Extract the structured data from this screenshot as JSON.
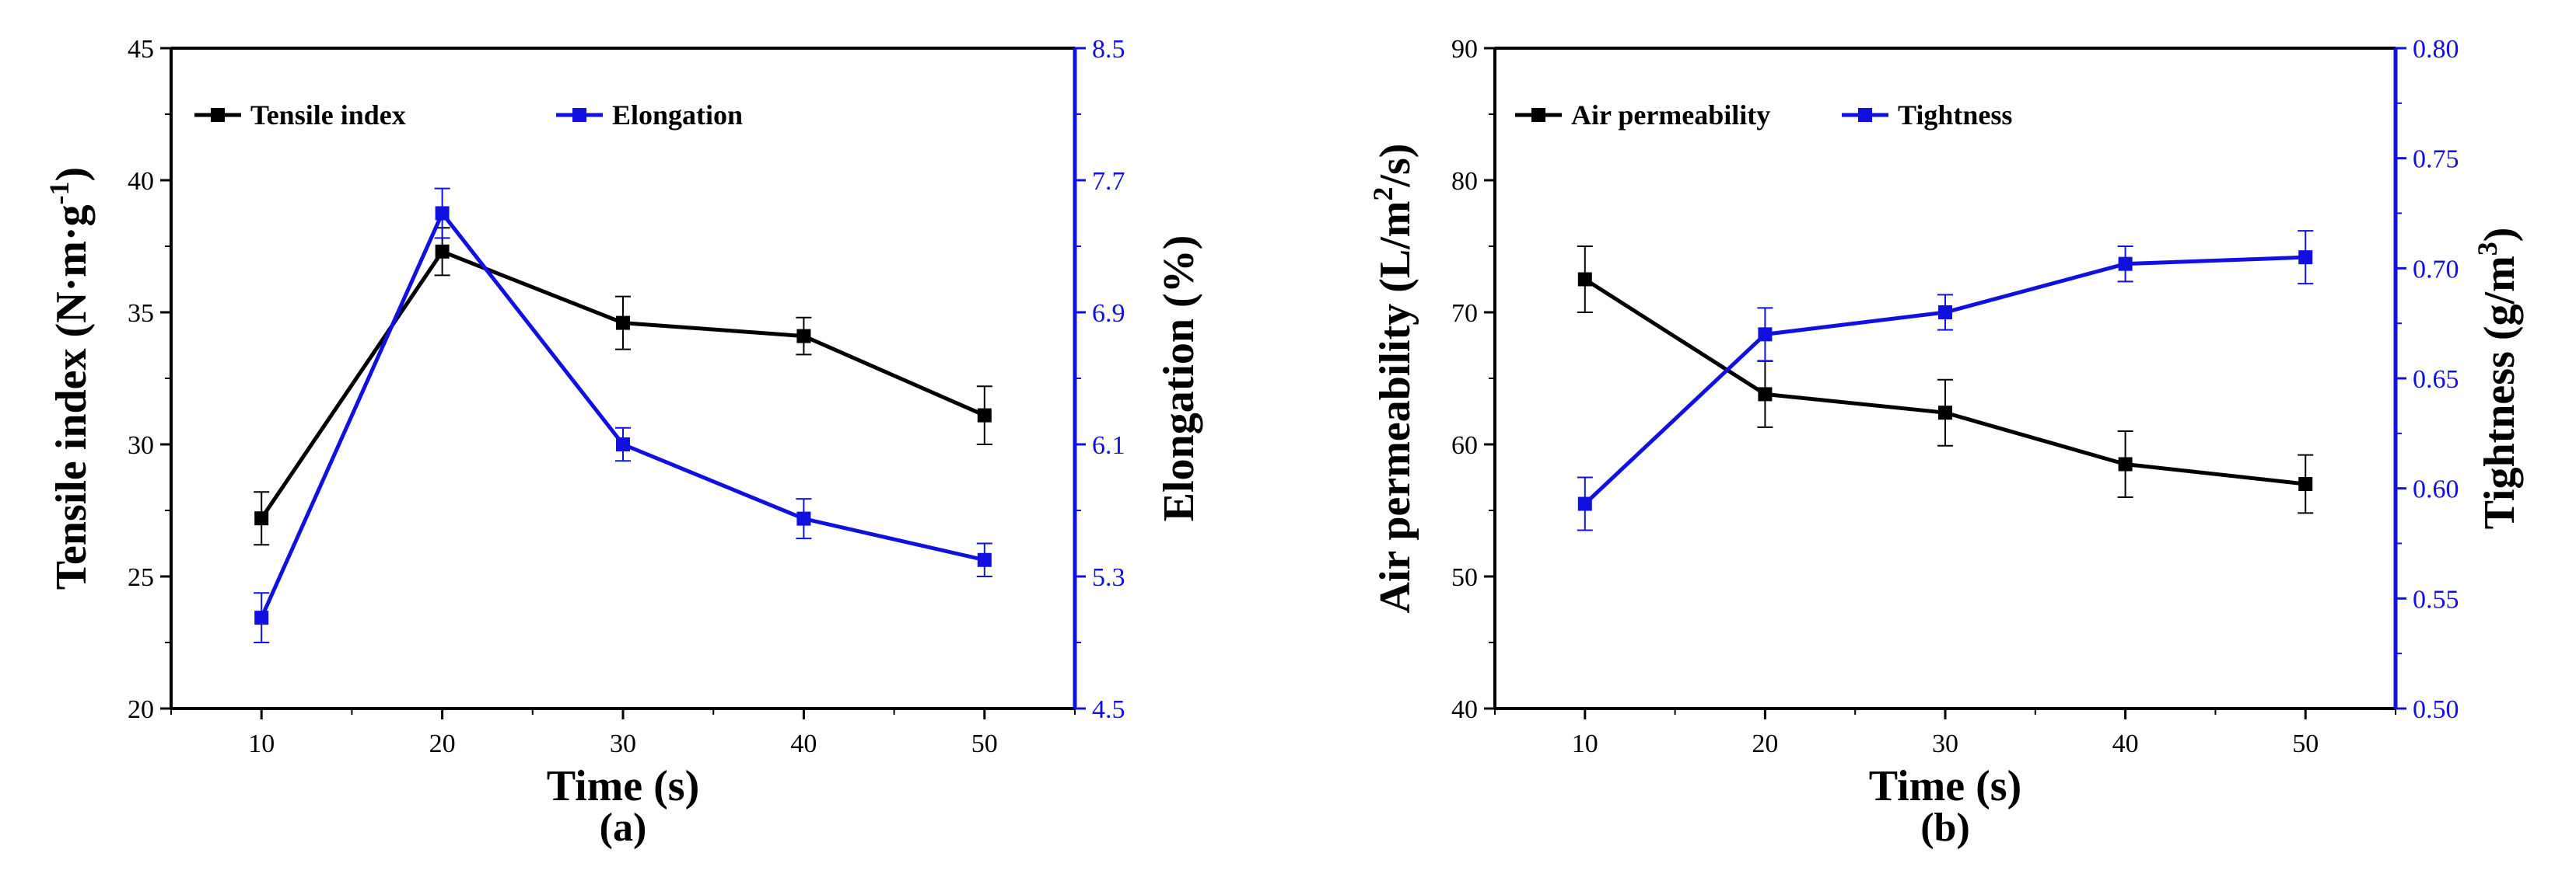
{
  "chart_data": [
    {
      "type": "line",
      "panel_label": "(a)",
      "xlabel": "Time (s)",
      "x": [
        10,
        20,
        30,
        40,
        50
      ],
      "xticks": [
        "10",
        "20",
        "30",
        "40",
        "50"
      ],
      "xlim": [
        5,
        55
      ],
      "ylabel_left": {
        "main": "Tensile index (N·m·g",
        "sup": "-1",
        "tail": ")"
      },
      "ylabel_right": "Elongation (%)",
      "ylim_left": [
        20,
        45
      ],
      "yticks_left": [
        "20",
        "25",
        "30",
        "35",
        "40",
        "45"
      ],
      "ylim_right": [
        4.5,
        8.5
      ],
      "yticks_right": [
        "4.5",
        "5.3",
        "6.1",
        "6.9",
        "7.7",
        "8.5"
      ],
      "legend_position": "top-left",
      "series": [
        {
          "name": "Tensile index",
          "axis": "left",
          "color": "#000000",
          "values": [
            27.2,
            37.3,
            34.6,
            34.1,
            31.1
          ],
          "errors": [
            1.0,
            0.9,
            1.0,
            0.7,
            1.1
          ]
        },
        {
          "name": "Elongation",
          "axis": "right",
          "color": "#1010e0",
          "values": [
            5.05,
            7.5,
            6.1,
            5.65,
            5.4
          ],
          "errors": [
            0.15,
            0.15,
            0.1,
            0.12,
            0.1
          ]
        }
      ]
    },
    {
      "type": "line",
      "panel_label": "(b)",
      "xlabel": "Time (s)",
      "x": [
        10,
        20,
        30,
        40,
        50
      ],
      "xticks": [
        "10",
        "20",
        "30",
        "40",
        "50"
      ],
      "xlim": [
        5,
        55
      ],
      "ylabel_left": {
        "main": "Air permeability (L/m",
        "sup": "2",
        "tail": "/s)"
      },
      "ylabel_right": {
        "main": "Tightness (g/m",
        "sup": "3",
        "tail": ")"
      },
      "ylim_left": [
        40,
        90
      ],
      "yticks_left": [
        "40",
        "50",
        "60",
        "70",
        "80",
        "90"
      ],
      "ylim_right": [
        0.5,
        0.8
      ],
      "yticks_right": [
        "0.50",
        "0.55",
        "0.60",
        "0.65",
        "0.70",
        "0.75",
        "0.80"
      ],
      "legend_position": "top-left",
      "series": [
        {
          "name": "Air permeability",
          "axis": "left",
          "color": "#000000",
          "values": [
            72.5,
            63.8,
            62.4,
            58.5,
            57.0
          ],
          "errors": [
            2.5,
            2.5,
            2.5,
            2.5,
            2.2
          ]
        },
        {
          "name": "Tightness",
          "axis": "right",
          "color": "#1010e0",
          "values": [
            0.593,
            0.67,
            0.68,
            0.702,
            0.705
          ],
          "errors": [
            0.012,
            0.012,
            0.008,
            0.008,
            0.012
          ]
        }
      ]
    }
  ]
}
